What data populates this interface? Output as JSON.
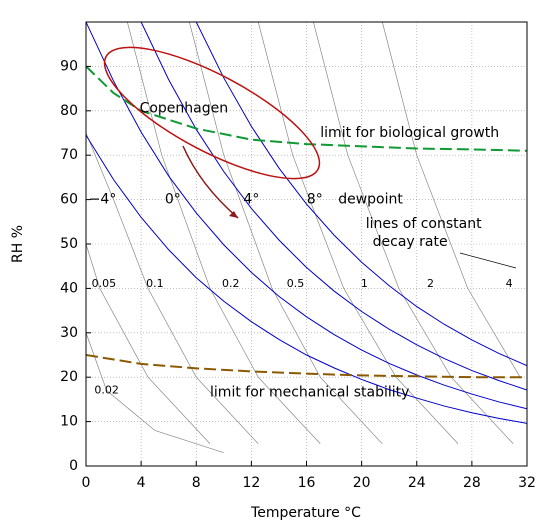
{
  "chart_data": {
    "type": "line",
    "x_label": "Temperature °C",
    "y_label": "RH %",
    "xlim": [
      0,
      32
    ],
    "ylim": [
      0,
      100
    ],
    "xticks": [
      0,
      4,
      8,
      12,
      16,
      20,
      24,
      28,
      32
    ],
    "yticks": [
      0,
      10,
      20,
      30,
      40,
      50,
      60,
      70,
      80,
      90
    ],
    "grid": true,
    "x": [
      0,
      2,
      4,
      6,
      8,
      10,
      12,
      14,
      16,
      18,
      20,
      22,
      24,
      26,
      28,
      30,
      32
    ],
    "series_title": "dewpoint",
    "series": [
      {
        "name": "−4°",
        "color": "#0000cc",
        "values": [
          74.5,
          64.5,
          56.0,
          48.7,
          42.4,
          37.1,
          32.5,
          28.5,
          25.0,
          22.1,
          19.5,
          17.2,
          15.3,
          13.5,
          12.0,
          10.7,
          9.6
        ]
      },
      {
        "name": "0°",
        "color": "#0000cc",
        "values": [
          100,
          86.7,
          75.2,
          65.3,
          57.0,
          49.8,
          43.6,
          38.2,
          33.6,
          29.6,
          26.1,
          23.1,
          20.5,
          18.2,
          16.2,
          14.4,
          12.9
        ]
      },
      {
        "name": "4°",
        "color": "#0000cc",
        "values": [
          null,
          null,
          100,
          87.0,
          75.8,
          66.3,
          58.0,
          50.9,
          44.7,
          39.4,
          34.8,
          30.8,
          27.3,
          24.2,
          21.5,
          19.2,
          17.1
        ]
      },
      {
        "name": "8°",
        "color": "#0000cc",
        "values": [
          null,
          null,
          null,
          null,
          100,
          87.4,
          76.5,
          67.1,
          59.0,
          52.0,
          45.9,
          40.6,
          35.9,
          31.9,
          28.4,
          25.3,
          22.6
        ]
      }
    ],
    "decay_title": [
      "lines of constant",
      "decay rate"
    ],
    "decay_lines": [
      {
        "name": "0.02",
        "color": "#888888",
        "x": [
          0,
          1.5,
          5,
          10
        ],
        "values": [
          30,
          17,
          8,
          3
        ]
      },
      {
        "name": "0.05",
        "color": "#888888",
        "x": [
          0,
          1,
          4.5,
          9
        ],
        "values": [
          50,
          40,
          20,
          5
        ]
      },
      {
        "name": "0.1",
        "color": "#888888",
        "x": [
          0,
          2,
          4.5,
          8,
          12.5
        ],
        "values": [
          75,
          60,
          40,
          20,
          5
        ]
      },
      {
        "name": "0.2",
        "color": "#888888",
        "x": [
          3,
          5.5,
          9,
          12.5,
          17
        ],
        "values": [
          100,
          70,
          40,
          20,
          5
        ]
      },
      {
        "name": "0.5",
        "color": "#888888",
        "x": [
          7.5,
          10,
          13.5,
          17,
          21.5
        ],
        "values": [
          100,
          70,
          40,
          20,
          5
        ]
      },
      {
        "name": "1",
        "color": "#888888",
        "x": [
          12.5,
          15,
          18.7,
          22.5,
          27
        ],
        "values": [
          100,
          70,
          40,
          20,
          5
        ]
      },
      {
        "name": "2",
        "color": "#888888",
        "x": [
          16.5,
          19,
          22.7,
          26.5,
          31
        ],
        "values": [
          100,
          70,
          40,
          20,
          5
        ]
      },
      {
        "name": "4",
        "color": "#888888",
        "x": [
          21.5,
          24,
          27.7,
          31.5
        ],
        "values": [
          100,
          70,
          40,
          20
        ]
      }
    ],
    "limit_lines": [
      {
        "name": "limit for biological growth",
        "color": "#119933",
        "x": [
          0,
          2,
          4,
          8,
          12,
          16,
          20,
          24,
          28,
          32
        ],
        "values": [
          90,
          84,
          80,
          76,
          73.5,
          72.5,
          72,
          71.5,
          71.3,
          71
        ]
      },
      {
        "name": "limit for mechanical stability",
        "color": "#8b5a00",
        "x": [
          0,
          4,
          8,
          12,
          16,
          20,
          24,
          28,
          32
        ],
        "values": [
          25,
          23,
          22,
          21.3,
          20.8,
          20.4,
          20.2,
          20,
          20
        ]
      }
    ],
    "region_label": "Copenhagen"
  }
}
